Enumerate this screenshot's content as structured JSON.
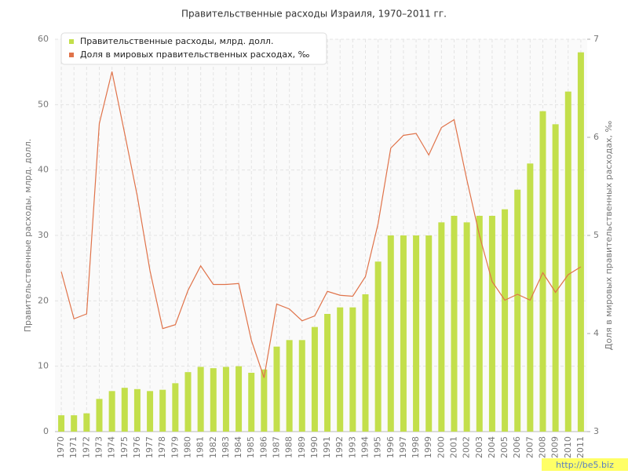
{
  "chart_data": {
    "type": "bar-line",
    "title": "Правительственные расходы Израиля, 1970–2011 гг.",
    "y_label": "Правительственные расходы, млрд. долл.",
    "y2_label": "Доля в мировых правительственных расходах, ‰",
    "categories": [
      "1970",
      "1971",
      "1972",
      "1973",
      "1974",
      "1975",
      "1976",
      "1977",
      "1978",
      "1979",
      "1980",
      "1981",
      "1982",
      "1983",
      "1984",
      "1985",
      "1986",
      "1987",
      "1988",
      "1989",
      "1990",
      "1991",
      "1992",
      "1993",
      "1994",
      "1995",
      "1996",
      "1997",
      "1998",
      "1999",
      "2000",
      "2001",
      "2002",
      "2003",
      "2004",
      "2005",
      "2006",
      "2007",
      "2008",
      "2009",
      "2010",
      "2011"
    ],
    "series": [
      {
        "name": "Правительственные расходы, млрд. долл.",
        "color": "#c3df4b",
        "type": "bar",
        "values": [
          2.5,
          2.5,
          2.8,
          5,
          6.2,
          6.7,
          6.5,
          6.2,
          6.4,
          7.4,
          9.1,
          9.9,
          9.7,
          9.9,
          10,
          9,
          9.5,
          13,
          14,
          14,
          16,
          18,
          19,
          19,
          21,
          26,
          30,
          30,
          30,
          30,
          32,
          33,
          32,
          33,
          33,
          34,
          37,
          41,
          49,
          47,
          52,
          58
        ]
      },
      {
        "name": "Доля в мировых правительственных расходах, ‰",
        "color": "#e0734a",
        "type": "line",
        "axis": "y2",
        "values": [
          4.63,
          4.15,
          4.2,
          6.14,
          6.67,
          6.04,
          5.4,
          4.64,
          4.05,
          4.09,
          4.44,
          4.69,
          4.5,
          4.5,
          4.51,
          3.93,
          3.55,
          4.3,
          4.25,
          4.13,
          4.18,
          4.43,
          4.39,
          4.38,
          4.58,
          5.12,
          5.89,
          6.02,
          6.04,
          5.82,
          6.1,
          6.18,
          5.57,
          5,
          4.53,
          4.34,
          4.4,
          4.34,
          4.62,
          4.42,
          4.6,
          4.68
        ]
      }
    ],
    "ylim": [
      0,
      60
    ],
    "yticks": [
      0,
      10,
      20,
      30,
      40,
      50,
      60
    ],
    "y2lim": [
      3,
      7
    ],
    "y2ticks": [
      3,
      4,
      5,
      6,
      7
    ],
    "grid": true,
    "legend": "top-left",
    "watermark": "http://be5.biz"
  }
}
